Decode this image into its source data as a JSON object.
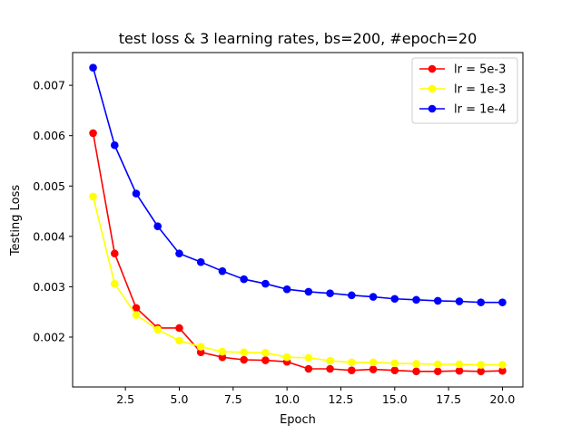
{
  "chart_data": {
    "type": "line",
    "title": "test loss & 3 learning rates, bs=200, #epoch=20",
    "xlabel": "Epoch",
    "ylabel": "Testing Loss",
    "xlim": [
      0.05,
      20.95
    ],
    "ylim": [
      0.00101,
      0.00765
    ],
    "xticks": [
      2.5,
      5.0,
      7.5,
      10.0,
      12.5,
      15.0,
      17.5,
      20.0
    ],
    "xtick_labels": [
      "2.5",
      "5.0",
      "7.5",
      "10.0",
      "12.5",
      "15.0",
      "17.5",
      "20.0"
    ],
    "yticks": [
      0.002,
      0.003,
      0.004,
      0.005,
      0.006,
      0.007
    ],
    "ytick_labels": [
      "0.002",
      "0.003",
      "0.004",
      "0.005",
      "0.006",
      "0.007"
    ],
    "grid": false,
    "legend_position": "top-right",
    "x": [
      1,
      2,
      3,
      4,
      5,
      6,
      7,
      8,
      9,
      10,
      11,
      12,
      13,
      14,
      15,
      16,
      17,
      18,
      19,
      20
    ],
    "series": [
      {
        "name": "lr = 5e-3",
        "color": "#ff0000",
        "values": [
          0.00605,
          0.00366,
          0.00258,
          0.00218,
          0.00218,
          0.0017,
          0.0016,
          0.00155,
          0.00154,
          0.00151,
          0.00137,
          0.00137,
          0.00134,
          0.00136,
          0.00134,
          0.00132,
          0.00132,
          0.00133,
          0.00132,
          0.00133
        ]
      },
      {
        "name": "lr = 1e-3",
        "color": "#ffff00",
        "values": [
          0.00479,
          0.00306,
          0.00244,
          0.00215,
          0.00193,
          0.00181,
          0.00171,
          0.0017,
          0.00169,
          0.0016,
          0.00159,
          0.00153,
          0.0015,
          0.0015,
          0.00148,
          0.00147,
          0.00146,
          0.00146,
          0.00145,
          0.00145
        ]
      },
      {
        "name": "lr = 1e-4",
        "color": "#0000ff",
        "values": [
          0.00735,
          0.00581,
          0.00485,
          0.0042,
          0.00366,
          0.00349,
          0.00331,
          0.00315,
          0.00306,
          0.00295,
          0.0029,
          0.00287,
          0.00283,
          0.0028,
          0.00276,
          0.00274,
          0.00272,
          0.00271,
          0.00269,
          0.00269
        ]
      }
    ]
  }
}
